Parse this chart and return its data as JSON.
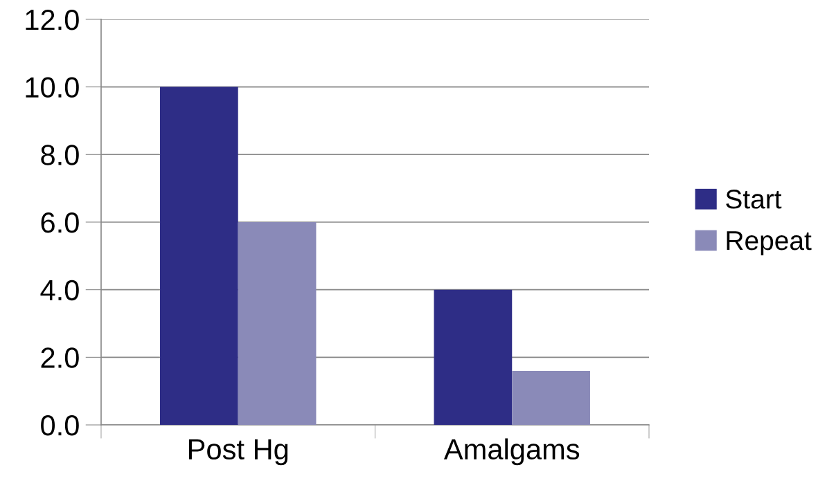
{
  "chart_data": {
    "type": "bar",
    "categories": [
      "Post Hg",
      "Amalgams"
    ],
    "series": [
      {
        "name": "Start",
        "color": "#2e2d86",
        "values": [
          10,
          4
        ]
      },
      {
        "name": "Repeat",
        "color": "#8a8ab8",
        "values": [
          6,
          1.6
        ]
      }
    ],
    "ylim": [
      0,
      12
    ],
    "yticks": [
      {
        "value": 0,
        "label": "0.0"
      },
      {
        "value": 2,
        "label": "2.0"
      },
      {
        "value": 4,
        "label": "4.0"
      },
      {
        "value": 6,
        "label": "6.0"
      },
      {
        "value": 8,
        "label": "8.0"
      },
      {
        "value": 10,
        "label": "10.0"
      },
      {
        "value": 12,
        "label": "12.0"
      }
    ],
    "grid": "y",
    "legend": "right"
  }
}
